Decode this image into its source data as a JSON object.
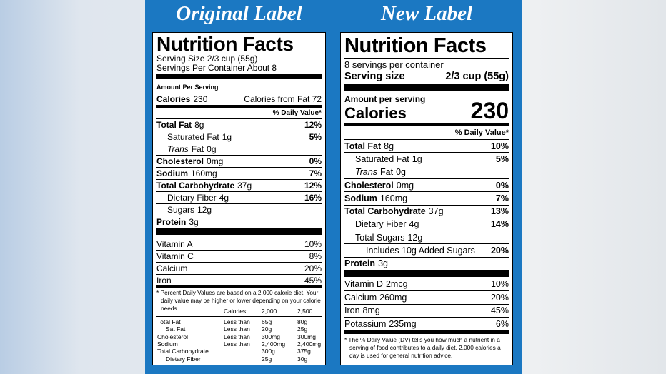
{
  "headings": {
    "original": "Original Label",
    "new": "New Label"
  },
  "original": {
    "title": "Nutrition Facts",
    "serving_size": "Serving Size 2/3 cup (55g)",
    "servings_per_container": "Servings Per Container About 8",
    "amount_per_serving": "Amount Per Serving",
    "calories": {
      "label": "Calories",
      "value": "230",
      "from_fat": "Calories from Fat 72"
    },
    "dv_header": "% Daily Value*",
    "nutrients": [
      {
        "name": "Total Fat",
        "amount": "8g",
        "dv": "12%",
        "bold": true
      },
      {
        "name": "Saturated Fat",
        "amount": "1g",
        "dv": "5%",
        "indent": 1
      },
      {
        "name_italic": "Trans",
        "name": "Fat",
        "amount": "0g",
        "indent": 1
      },
      {
        "name": "Cholesterol",
        "amount": "0mg",
        "dv": "0%",
        "bold": true
      },
      {
        "name": "Sodium",
        "amount": "160mg",
        "dv": "7%",
        "bold": true
      },
      {
        "name": "Total Carbohydrate",
        "amount": "37g",
        "dv": "12%",
        "bold": true
      },
      {
        "name": "Dietary Fiber",
        "amount": "4g",
        "dv": "16%",
        "indent": 1
      },
      {
        "name": "Sugars",
        "amount": "12g",
        "indent": 1
      },
      {
        "name": "Protein",
        "amount": "3g",
        "bold": true
      }
    ],
    "vitamins": [
      {
        "name": "Vitamin A",
        "dv": "10%"
      },
      {
        "name": "Vitamin C",
        "dv": "8%"
      },
      {
        "name": "Calcium",
        "dv": "20%"
      },
      {
        "name": "Iron",
        "dv": "45%"
      }
    ],
    "footnote": "* Percent Daily Values are based on a 2,000 calorie diet. Your daily value may be higher or lower depending on your calorie needs.",
    "table": {
      "header": [
        "Calories:",
        "2,000",
        "2,500"
      ],
      "rows": [
        {
          "name": "Total Fat",
          "qualifier": "Less than",
          "v2000": "65g",
          "v2500": "80g"
        },
        {
          "name": "Sat Fat",
          "qualifier": "Less than",
          "v2000": "20g",
          "v2500": "25g",
          "indent": 1
        },
        {
          "name": "Cholesterol",
          "qualifier": "Less than",
          "v2000": "300mg",
          "v2500": "300mg"
        },
        {
          "name": "Sodium",
          "qualifier": "Less than",
          "v2000": "2,400mg",
          "v2500": "2,400mg"
        },
        {
          "name": "Total Carbohydrate",
          "v2000": "300g",
          "v2500": "375g"
        },
        {
          "name": "Dietary Fiber",
          "v2000": "25g",
          "v2500": "30g",
          "indent": 1
        }
      ]
    }
  },
  "new": {
    "title": "Nutrition Facts",
    "servings_per_container": "8 servings per container",
    "serving_size": {
      "label": "Serving size",
      "value": "2/3 cup (55g)"
    },
    "amount_per_serving": "Amount per serving",
    "calories": {
      "label": "Calories",
      "value": "230"
    },
    "dv_header": "% Daily Value*",
    "nutrients": [
      {
        "name": "Total Fat",
        "amount": "8g",
        "dv": "10%",
        "bold": true
      },
      {
        "name": "Saturated Fat",
        "amount": "1g",
        "dv": "5%",
        "indent": 1
      },
      {
        "name_italic": "Trans",
        "name": "Fat",
        "amount": "0g",
        "indent": 1
      },
      {
        "name": "Cholesterol",
        "amount": "0mg",
        "dv": "0%",
        "bold": true
      },
      {
        "name": "Sodium",
        "amount": "160mg",
        "dv": "7%",
        "bold": true
      },
      {
        "name": "Total Carbohydrate",
        "amount": "37g",
        "dv": "13%",
        "bold": true
      },
      {
        "name": "Dietary Fiber",
        "amount": "4g",
        "dv": "14%",
        "indent": 1
      },
      {
        "name": "Total Sugars",
        "amount": "12g",
        "indent": 1
      },
      {
        "name": "Includes 10g Added Sugars",
        "dv": "20%",
        "indent": 2
      },
      {
        "name": "Protein",
        "amount": "3g",
        "bold": true
      }
    ],
    "vitamins": [
      {
        "name": "Vitamin D",
        "amount": "2mcg",
        "dv": "10%"
      },
      {
        "name": "Calcium",
        "amount": "260mg",
        "dv": "20%"
      },
      {
        "name": "Iron",
        "amount": "8mg",
        "dv": "45%"
      },
      {
        "name": "Potassium",
        "amount": "235mg",
        "dv": "6%"
      }
    ],
    "footnote": "* The % Daily Value (DV) tells you how much a nutrient in a serving of food contributes to a daily diet. 2,000 calories a day is used for general nutrition advice."
  }
}
